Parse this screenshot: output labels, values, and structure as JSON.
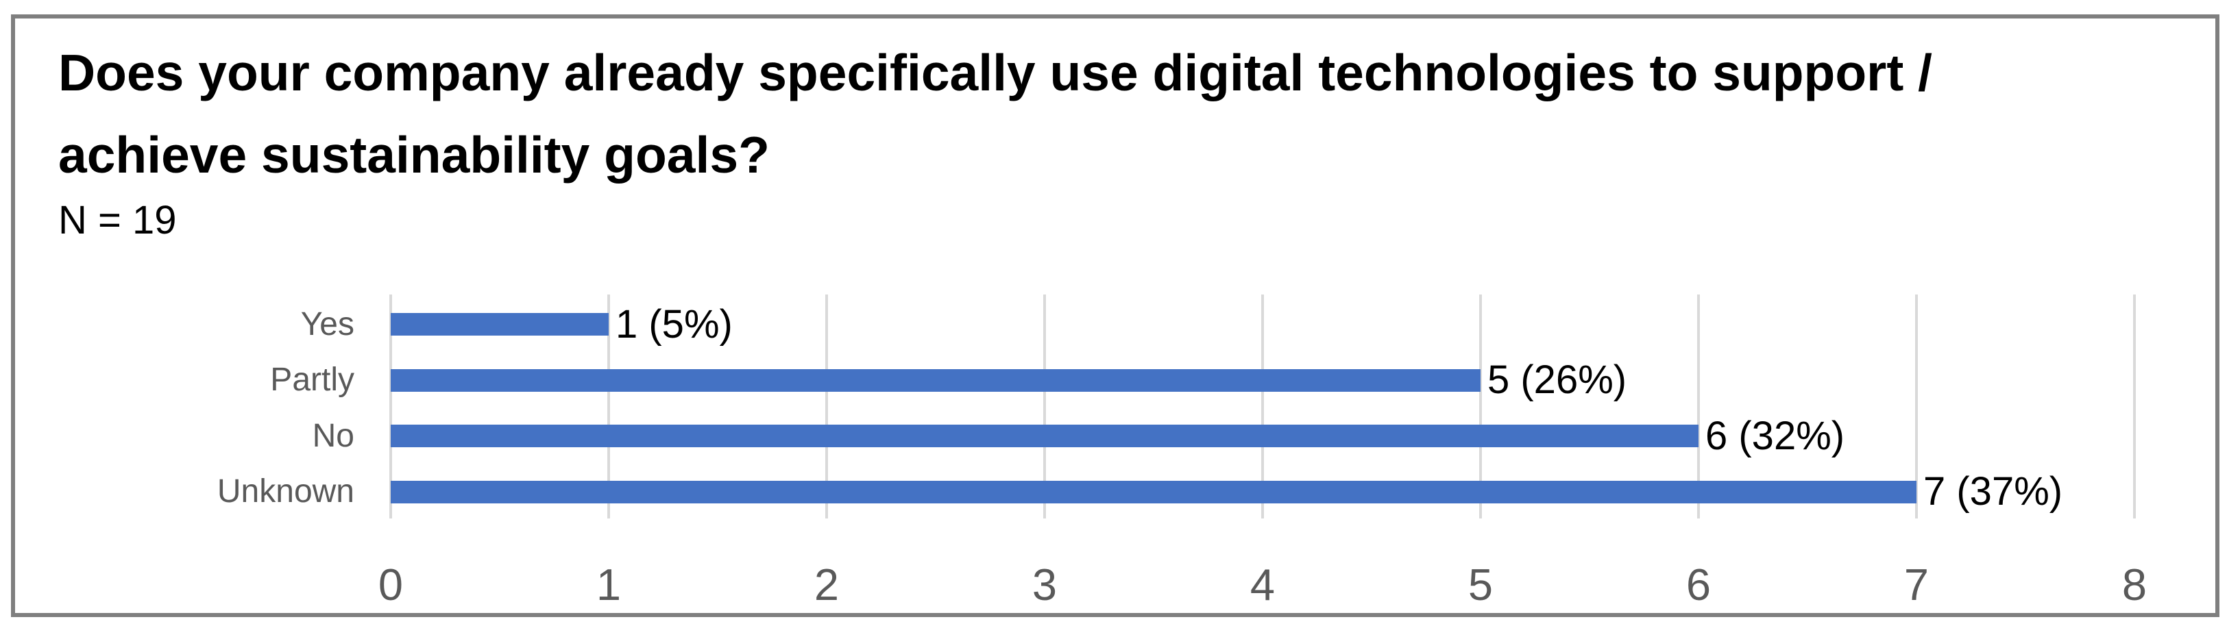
{
  "header": {
    "title": "Does your company already specifically use digital technologies to support / achieve sustainability goals?",
    "title_line1": "Does your company already specifically use digital technologies to support /",
    "title_line2": "achieve sustainability goals?",
    "sample_size_label": "N = 19"
  },
  "chart_data": {
    "type": "bar",
    "orientation": "horizontal",
    "title": "Does your company already specifically use digital technologies to support / achieve sustainability goals?",
    "subtitle": "N = 19",
    "sample_size": 19,
    "categories": [
      "Yes",
      "Partly",
      "No",
      "Unknown"
    ],
    "values": [
      1,
      5,
      6,
      7
    ],
    "percentages": [
      5,
      26,
      32,
      37
    ],
    "data_labels": [
      "1 (5%)",
      "5 (26%)",
      "6 (32%)",
      "7 (37%)"
    ],
    "xlabel": "",
    "ylabel": "",
    "xlim": [
      0,
      8
    ],
    "x_ticks": [
      0,
      1,
      2,
      3,
      4,
      5,
      6,
      7,
      8
    ],
    "grid": true,
    "legend": "none",
    "colors": {
      "bar": "#4472C4",
      "gridline": "#D9D9D9",
      "axis_text": "#595959",
      "data_label_text": "#000000",
      "title_text": "#000000",
      "figure_border": "#7F7F7F",
      "background": "#FFFFFF"
    }
  }
}
